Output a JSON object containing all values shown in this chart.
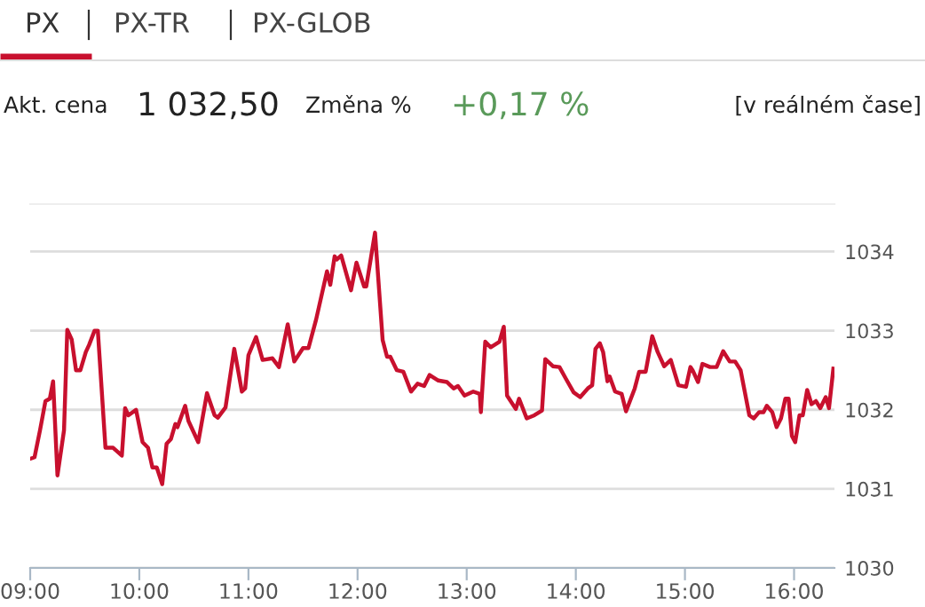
{
  "chart_data": {
    "type": "line",
    "title": "PX",
    "annotations": [
      "PX-TR",
      "PX-GLOB",
      "Akt. cena",
      "1 032,50",
      "Změna %",
      "+0,17 %",
      "[v reálném čase]"
    ],
    "x": [
      9.0,
      9.04,
      9.09,
      9.14,
      9.18,
      9.21,
      9.25,
      9.31,
      9.34,
      9.38,
      9.42,
      9.46,
      9.51,
      9.54,
      9.59,
      9.62,
      9.69,
      9.76,
      9.84,
      9.87,
      9.9,
      9.97,
      10.03,
      10.08,
      10.12,
      10.16,
      10.21,
      10.25,
      10.29,
      10.33,
      10.35,
      10.42,
      10.45,
      10.54,
      10.62,
      10.69,
      10.72,
      10.79,
      10.87,
      10.94,
      10.97,
      11.0,
      11.07,
      11.13,
      11.22,
      11.28,
      11.36,
      11.42,
      11.5,
      11.55,
      11.62,
      11.72,
      11.75,
      11.79,
      11.81,
      11.85,
      11.94,
      11.99,
      12.06,
      12.08,
      12.16,
      12.23,
      12.27,
      12.3,
      12.36,
      12.42,
      12.49,
      12.55,
      12.61,
      12.66,
      12.74,
      12.82,
      12.88,
      12.92,
      12.98,
      13.06,
      13.12,
      13.13,
      13.17,
      13.22,
      13.3,
      13.34,
      13.37,
      13.45,
      13.48,
      13.55,
      13.62,
      13.69,
      13.72,
      13.79,
      13.85,
      13.91,
      13.98,
      14.04,
      14.11,
      14.15,
      14.18,
      14.22,
      14.25,
      14.29,
      14.31,
      14.36,
      14.42,
      14.46,
      14.54,
      14.58,
      14.64,
      14.7,
      14.75,
      14.81,
      14.87,
      14.94,
      15.01,
      15.05,
      15.07,
      15.12,
      15.16,
      15.23,
      15.29,
      15.35,
      15.41,
      15.46,
      15.51,
      15.59,
      15.63,
      15.68,
      15.72,
      15.75,
      15.8,
      15.84,
      15.88,
      15.92,
      15.95,
      15.98,
      16.01,
      16.05,
      16.08,
      16.12,
      16.16,
      16.2,
      16.24,
      16.29,
      16.32,
      16.36
    ],
    "series": [
      {
        "color": "#c8102e",
        "values": [
          1031.38,
          1031.4,
          1031.74,
          1032.11,
          1032.14,
          1032.36,
          1031.17,
          1031.74,
          1033.01,
          1032.89,
          1032.5,
          1032.5,
          1032.73,
          1032.82,
          1033.0,
          1033.0,
          1031.52,
          1031.52,
          1031.42,
          1032.02,
          1031.93,
          1032.0,
          1031.59,
          1031.52,
          1031.27,
          1031.27,
          1031.06,
          1031.57,
          1031.63,
          1031.82,
          1031.78,
          1032.05,
          1031.86,
          1031.59,
          1032.21,
          1031.93,
          1031.9,
          1032.03,
          1032.77,
          1032.23,
          1032.27,
          1032.69,
          1032.92,
          1032.63,
          1032.65,
          1032.54,
          1033.08,
          1032.61,
          1032.78,
          1032.78,
          1033.14,
          1033.75,
          1033.58,
          1033.94,
          1033.9,
          1033.95,
          1033.51,
          1033.86,
          1033.56,
          1033.56,
          1034.24,
          1032.88,
          1032.67,
          1032.67,
          1032.5,
          1032.48,
          1032.23,
          1032.33,
          1032.3,
          1032.44,
          1032.37,
          1032.35,
          1032.27,
          1032.3,
          1032.18,
          1032.23,
          1032.2,
          1031.97,
          1032.86,
          1032.79,
          1032.86,
          1033.05,
          1032.18,
          1032.01,
          1032.14,
          1031.89,
          1031.93,
          1031.99,
          1032.64,
          1032.55,
          1032.54,
          1032.39,
          1032.22,
          1032.16,
          1032.27,
          1032.31,
          1032.77,
          1032.84,
          1032.73,
          1032.36,
          1032.42,
          1032.23,
          1032.2,
          1031.98,
          1032.27,
          1032.48,
          1032.48,
          1032.93,
          1032.73,
          1032.55,
          1032.63,
          1032.31,
          1032.29,
          1032.54,
          1032.5,
          1032.35,
          1032.58,
          1032.54,
          1032.54,
          1032.74,
          1032.61,
          1032.61,
          1032.5,
          1031.93,
          1031.89,
          1031.97,
          1031.97,
          1032.05,
          1031.97,
          1031.78,
          1031.89,
          1032.14,
          1032.14,
          1031.67,
          1031.59,
          1031.93,
          1031.93,
          1032.25,
          1032.07,
          1032.11,
          1032.02,
          1032.16,
          1032.02,
          1032.52
        ]
      }
    ],
    "xlim": [
      9.0,
      16.37
    ],
    "ylim": [
      1030,
      1034.6
    ],
    "xticks": [
      {
        "value": 9,
        "label": "09:00"
      },
      {
        "value": 10,
        "label": "10:00"
      },
      {
        "value": 11,
        "label": "11:00"
      },
      {
        "value": 12,
        "label": "12:00"
      },
      {
        "value": 13,
        "label": "13:00"
      },
      {
        "value": 14,
        "label": "14:00"
      },
      {
        "value": 15,
        "label": "15:00"
      },
      {
        "value": 16,
        "label": "16:00"
      }
    ],
    "yticks": [
      1030,
      1031,
      1032,
      1033,
      1034
    ],
    "grid": "y",
    "marker": "none",
    "line_style": "solid",
    "legend": false
  }
}
